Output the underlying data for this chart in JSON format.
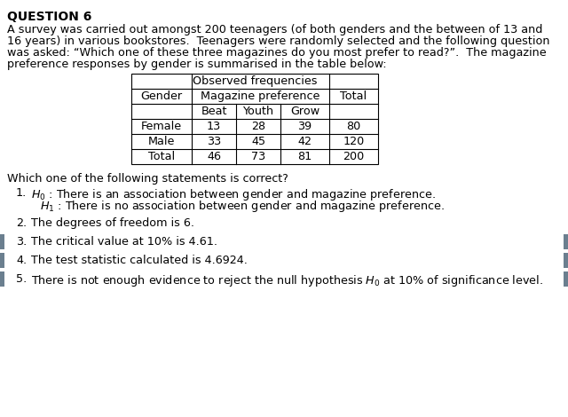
{
  "title": "QUESTION 6",
  "paragraph_lines": [
    "A survey was carried out amongst 200 teenagers (of both genders and the between of 13 and",
    "16 years) in various bookstores.  Teenagers were randomly selected and the following question",
    "was asked: “Which one of these three magazines do you most prefer to read?”.  The magazine",
    "preference responses by gender is summarised in the table below:"
  ],
  "table_title": "Observed frequencies",
  "table_subheaders": [
    "Beat",
    "Youth",
    "Grow"
  ],
  "table_rows": [
    [
      "Female",
      "13",
      "28",
      "39",
      "80"
    ],
    [
      "Male",
      "33",
      "45",
      "42",
      "120"
    ],
    [
      "Total",
      "46",
      "73",
      "81",
      "200"
    ]
  ],
  "question": "Which one of the following statements is correct?",
  "options": [
    {
      "number": "1.",
      "lines": [
        "$H_0$ : There is an association between gender and magazine preference.",
        "$H_1$ : There is no association between gender and magazine preference."
      ],
      "highlight": false
    },
    {
      "number": "2.",
      "lines": [
        "The degrees of freedom is 6."
      ],
      "highlight": false
    },
    {
      "number": "3.",
      "lines": [
        "The critical value at 10% is 4.61."
      ],
      "highlight": true
    },
    {
      "number": "4.",
      "lines": [
        "The test statistic calculated is 4.6924."
      ],
      "highlight": true
    },
    {
      "number": "5.",
      "lines": [
        "There is not enough evidence to reject the null hypothesis $H_0$ at 10% of significance level."
      ],
      "highlight": true
    }
  ],
  "bg_color": "#ffffff",
  "sidebar_color": "#6b7f8f",
  "font_size": 9.2,
  "title_font_size": 10.0
}
